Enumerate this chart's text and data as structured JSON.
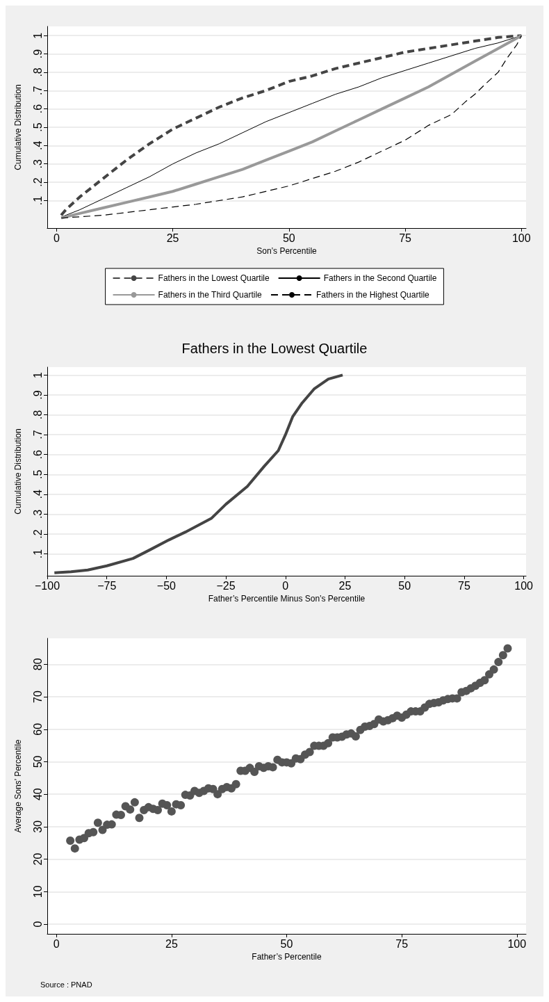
{
  "chart_data": [
    {
      "type": "line",
      "xlabel": "Son’s Percentile",
      "ylabel": "Cumulative Distribution",
      "xlim": [
        -2,
        101
      ],
      "ylim": [
        -0.05,
        1.05
      ],
      "xticks": [
        0,
        25,
        50,
        75,
        100
      ],
      "yticks": [
        {
          "value": 0.1,
          "label": ".1"
        },
        {
          "value": 0.2,
          "label": ".2"
        },
        {
          "value": 0.3,
          "label": ".3"
        },
        {
          "value": 0.4,
          "label": ".4"
        },
        {
          "value": 0.5,
          "label": ".5"
        },
        {
          "value": 0.6,
          "label": ".6"
        },
        {
          "value": 0.7,
          "label": ".7"
        },
        {
          "value": 0.8,
          "label": ".8"
        },
        {
          "value": 0.9,
          "label": ".9"
        },
        1
      ],
      "grid": "y",
      "legend": "bottom",
      "marker": "none",
      "series": [
        {
          "name": "Fathers in the Lowest Quartile",
          "color": "#444444",
          "line_style": "dashed",
          "x": [
            1,
            2,
            5,
            10,
            15,
            20,
            25,
            30,
            35,
            40,
            45,
            50,
            55,
            60,
            65,
            70,
            75,
            80,
            85,
            90,
            95,
            100
          ],
          "values": [
            0.02,
            0.05,
            0.12,
            0.22,
            0.32,
            0.41,
            0.49,
            0.55,
            0.61,
            0.66,
            0.7,
            0.75,
            0.78,
            0.82,
            0.85,
            0.88,
            0.91,
            0.93,
            0.95,
            0.97,
            0.99,
            1
          ]
        },
        {
          "name": "Fathers in the Second Quartile",
          "color": "#000000",
          "line_style": "solid",
          "x": [
            1,
            5,
            10,
            15,
            20,
            25,
            30,
            35,
            40,
            45,
            50,
            55,
            60,
            65,
            70,
            75,
            80,
            85,
            90,
            95,
            100
          ],
          "values": [
            0.01,
            0.05,
            0.11,
            0.17,
            0.23,
            0.3,
            0.36,
            0.41,
            0.47,
            0.53,
            0.58,
            0.63,
            0.68,
            0.72,
            0.77,
            0.81,
            0.85,
            0.89,
            0.93,
            0.96,
            1
          ]
        },
        {
          "name": "Fathers in the Third Quartile",
          "color": "#999999",
          "line_style": "solid",
          "x": [
            1,
            5,
            10,
            15,
            20,
            25,
            30,
            35,
            40,
            45,
            50,
            55,
            60,
            65,
            70,
            75,
            80,
            85,
            90,
            95,
            100
          ],
          "values": [
            0.005,
            0.03,
            0.06,
            0.09,
            0.12,
            0.15,
            0.19,
            0.23,
            0.27,
            0.32,
            0.37,
            0.42,
            0.48,
            0.54,
            0.6,
            0.66,
            0.72,
            0.79,
            0.86,
            0.93,
            1
          ]
        },
        {
          "name": "Fathers in the Highest Quartile",
          "color": "#000000",
          "line_style": "dashed",
          "x": [
            1,
            10,
            20,
            30,
            40,
            50,
            55,
            60,
            65,
            70,
            75,
            80,
            85,
            88,
            90,
            92,
            95,
            97,
            99,
            100
          ],
          "values": [
            0.005,
            0.02,
            0.05,
            0.08,
            0.12,
            0.18,
            0.22,
            0.26,
            0.31,
            0.37,
            0.43,
            0.51,
            0.57,
            0.64,
            0.68,
            0.73,
            0.8,
            0.88,
            0.95,
            1
          ]
        }
      ]
    },
    {
      "type": "line",
      "title": "Fathers in the Lowest Quartile",
      "xlabel": "Father’s Percentile Minus Son’s Percentile",
      "ylabel": "Cumulative Distribution",
      "xlim": [
        -100,
        101
      ],
      "ylim": [
        -0.01,
        1.04
      ],
      "xticks": [
        {
          "value": -100,
          "label": "−100"
        },
        {
          "value": -75,
          "label": "−75"
        },
        {
          "value": -50,
          "label": "−50"
        },
        {
          "value": -25,
          "label": "−25"
        },
        0,
        25,
        50,
        75,
        100
      ],
      "yticks": [
        {
          "value": 0.1,
          "label": ".1"
        },
        {
          "value": 0.2,
          "label": ".2"
        },
        {
          "value": 0.3,
          "label": ".3"
        },
        {
          "value": 0.4,
          "label": ".4"
        },
        {
          "value": 0.5,
          "label": ".5"
        },
        {
          "value": 0.6,
          "label": ".6"
        },
        {
          "value": 0.7,
          "label": ".7"
        },
        {
          "value": 0.8,
          "label": ".8"
        },
        {
          "value": 0.9,
          "label": ".9"
        },
        1
      ],
      "grid": "y",
      "marker": "none",
      "series": [
        {
          "color": "#444444",
          "line_style": "solid",
          "x": [
            -97,
            -90,
            -83,
            -75,
            -64,
            -57,
            -49,
            -42,
            -31,
            -25,
            -16,
            -9,
            -3,
            0,
            3,
            7,
            12,
            18,
            24
          ],
          "values": [
            0.005,
            0.01,
            0.019,
            0.04,
            0.077,
            0.12,
            0.17,
            0.21,
            0.28,
            0.35,
            0.44,
            0.54,
            0.62,
            0.7,
            0.79,
            0.86,
            0.93,
            0.98,
            1
          ]
        }
      ]
    },
    {
      "type": "scatter",
      "xlabel": "Father’s Percentile",
      "ylabel": "Average Sons’ Percentile",
      "xlim": [
        -2,
        102
      ],
      "ylim": [
        -3,
        88
      ],
      "xticks": [
        0,
        25,
        50,
        75,
        100
      ],
      "yticks": [
        0,
        10,
        20,
        30,
        40,
        50,
        60,
        70,
        80
      ],
      "grid": "y",
      "marker": "circle",
      "annotations": [
        "Source : PNAD"
      ],
      "series": [
        {
          "color": "#555555",
          "x": [
            3,
            4,
            5,
            6,
            7,
            8,
            9,
            10,
            11,
            12,
            13,
            14,
            15,
            16,
            17,
            18,
            19,
            20,
            21,
            22,
            23,
            24,
            25,
            26,
            27,
            28,
            29,
            30,
            31,
            32,
            33,
            34,
            35,
            36,
            37,
            38,
            39,
            40,
            41,
            42,
            43,
            44,
            45,
            46,
            47,
            48,
            49,
            50,
            51,
            52,
            53,
            54,
            55,
            56,
            57,
            58,
            59,
            60,
            61,
            62,
            63,
            64,
            65,
            66,
            67,
            68,
            69,
            70,
            71,
            72,
            73,
            74,
            75,
            76,
            77,
            78,
            79,
            80,
            81,
            82,
            83,
            84,
            85,
            86,
            87,
            88,
            89,
            90,
            91,
            92,
            93,
            94,
            95,
            96,
            97,
            98
          ],
          "values": [
            25.7,
            23.3,
            26.0,
            26.5,
            28.0,
            28.3,
            31.2,
            29.0,
            30.6,
            30.7,
            33.7,
            33.6,
            36.3,
            35.3,
            37.5,
            32.7,
            35.1,
            36.0,
            35.5,
            35.1,
            37.1,
            36.6,
            34.7,
            36.9,
            36.6,
            39.8,
            39.6,
            41.0,
            40.4,
            41.0,
            41.8,
            41.6,
            40.0,
            41.6,
            42.2,
            41.8,
            43.1,
            47.2,
            47.2,
            48.1,
            46.9,
            48.6,
            48.1,
            48.6,
            48.3,
            50.6,
            49.8,
            49.8,
            49.5,
            51.0,
            50.8,
            52.2,
            53.0,
            54.9,
            54.9,
            54.9,
            55.7,
            57.5,
            57.5,
            57.7,
            58.4,
            58.7,
            57.8,
            59.8,
            60.8,
            61.0,
            61.6,
            63.0,
            62.4,
            62.8,
            63.4,
            64.2,
            63.6,
            64.5,
            65.5,
            65.5,
            65.5,
            66.7,
            67.8,
            68.1,
            68.3,
            68.9,
            69.3,
            69.5,
            69.5,
            71.4,
            71.8,
            72.6,
            73.4,
            74.3,
            75.1,
            76.9,
            78.4,
            80.7,
            82.8,
            84.9
          ]
        }
      ]
    }
  ]
}
